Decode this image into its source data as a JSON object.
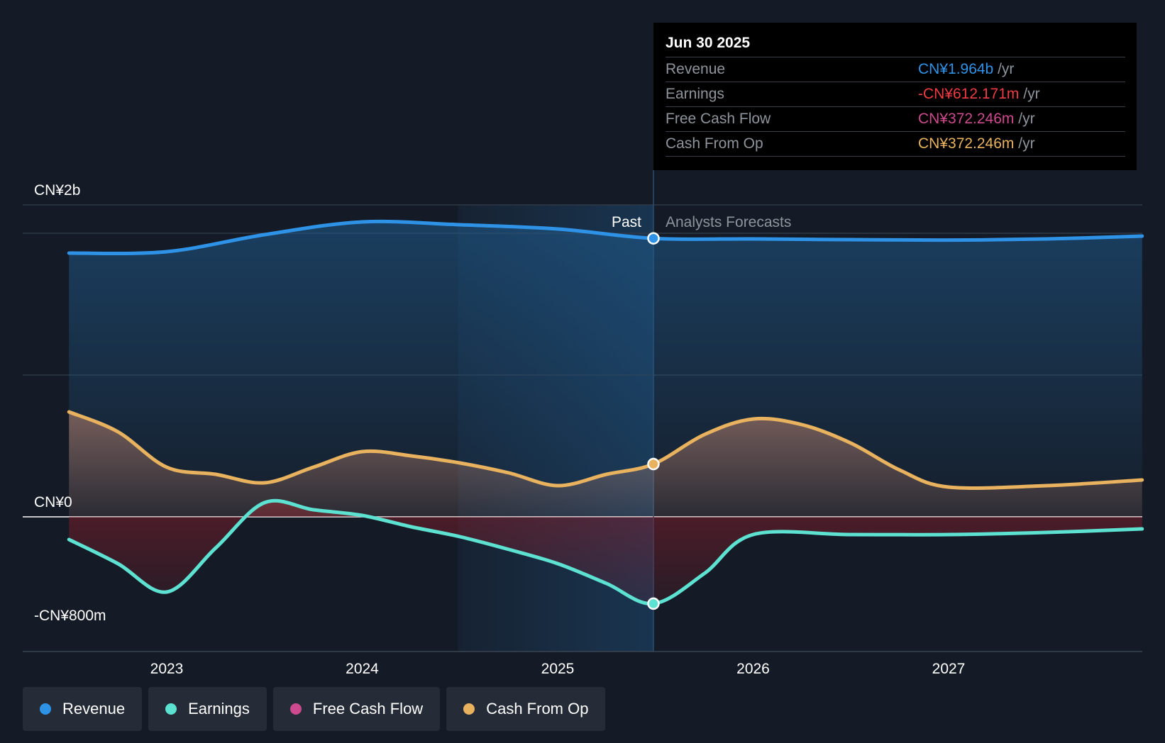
{
  "chart_data": {
    "type": "area",
    "y_unit": "CN¥m",
    "ylim": [
      -800,
      2200
    ],
    "y_ticks": [
      {
        "value": 2000,
        "label": "CN¥2b"
      },
      {
        "value": 0,
        "label": "CN¥0"
      },
      {
        "value": -800,
        "label": "-CN¥800m"
      }
    ],
    "x_ticks": [
      {
        "value": 2023.0,
        "label": "2023"
      },
      {
        "value": 2024.0,
        "label": "2024"
      },
      {
        "value": 2025.0,
        "label": "2025"
      },
      {
        "value": 2026.0,
        "label": "2026"
      },
      {
        "value": 2027.0,
        "label": "2027"
      }
    ],
    "xlim": [
      2022.27,
      2027.99
    ],
    "past_label": "Past",
    "forecast_label": "Analysts Forecasts",
    "divider_x": 2025.49,
    "highlight_start_x": 2024.49,
    "series": [
      {
        "name": "Revenue",
        "color": "#2e93e6",
        "fill": true,
        "points": [
          [
            2022.5,
            1860
          ],
          [
            2023.0,
            1870
          ],
          [
            2023.5,
            1990
          ],
          [
            2024.0,
            2080
          ],
          [
            2024.5,
            2060
          ],
          [
            2025.0,
            2030
          ],
          [
            2025.49,
            1964
          ],
          [
            2026.0,
            1960
          ],
          [
            2026.5,
            1955
          ],
          [
            2027.0,
            1952
          ],
          [
            2027.5,
            1960
          ],
          [
            2027.99,
            1980
          ]
        ]
      },
      {
        "name": "Earnings",
        "color": "#5de2d2",
        "fill": true,
        "points": [
          [
            2022.5,
            -160
          ],
          [
            2022.75,
            -330
          ],
          [
            2023.0,
            -530
          ],
          [
            2023.25,
            -220
          ],
          [
            2023.5,
            100
          ],
          [
            2023.75,
            50
          ],
          [
            2024.0,
            10
          ],
          [
            2024.25,
            -70
          ],
          [
            2024.5,
            -140
          ],
          [
            2024.75,
            -230
          ],
          [
            2025.0,
            -330
          ],
          [
            2025.25,
            -470
          ],
          [
            2025.49,
            -612.171
          ],
          [
            2025.75,
            -400
          ],
          [
            2026.0,
            -125
          ],
          [
            2026.5,
            -125
          ],
          [
            2027.0,
            -125
          ],
          [
            2027.5,
            -110
          ],
          [
            2027.99,
            -85
          ]
        ]
      },
      {
        "name": "Free Cash Flow",
        "color": "#cc4a8d",
        "fill": false,
        "points": [
          [
            2025.49,
            372.246
          ]
        ]
      },
      {
        "name": "Cash From Op",
        "color": "#e8b25e",
        "fill": true,
        "points": [
          [
            2022.5,
            740
          ],
          [
            2022.75,
            600
          ],
          [
            2023.0,
            350
          ],
          [
            2023.25,
            300
          ],
          [
            2023.5,
            240
          ],
          [
            2023.75,
            350
          ],
          [
            2024.0,
            460
          ],
          [
            2024.25,
            430
          ],
          [
            2024.5,
            380
          ],
          [
            2024.75,
            310
          ],
          [
            2025.0,
            220
          ],
          [
            2025.25,
            300
          ],
          [
            2025.49,
            372.246
          ],
          [
            2025.75,
            580
          ],
          [
            2026.0,
            690
          ],
          [
            2026.25,
            650
          ],
          [
            2026.5,
            520
          ],
          [
            2026.75,
            330
          ],
          [
            2027.0,
            210
          ],
          [
            2027.5,
            220
          ],
          [
            2027.99,
            260
          ]
        ]
      }
    ],
    "tooltip": {
      "date": "Jun 30 2025",
      "rows": [
        {
          "label": "Revenue",
          "value": "CN¥1.964b",
          "unit": "/yr",
          "color": "#2e93e6"
        },
        {
          "label": "Earnings",
          "value": "-CN¥612.171m",
          "unit": "/yr",
          "color": "#ef3b42"
        },
        {
          "label": "Free Cash Flow",
          "value": "CN¥372.246m",
          "unit": "/yr",
          "color": "#cc4a8d"
        },
        {
          "label": "Cash From Op",
          "value": "CN¥372.246m",
          "unit": "/yr",
          "color": "#e8b25e"
        }
      ]
    },
    "legend": [
      {
        "label": "Revenue",
        "color": "#2e93e6"
      },
      {
        "label": "Earnings",
        "color": "#5de2d2"
      },
      {
        "label": "Free Cash Flow",
        "color": "#cc4a8d"
      },
      {
        "label": "Cash From Op",
        "color": "#e8b25e"
      }
    ]
  }
}
